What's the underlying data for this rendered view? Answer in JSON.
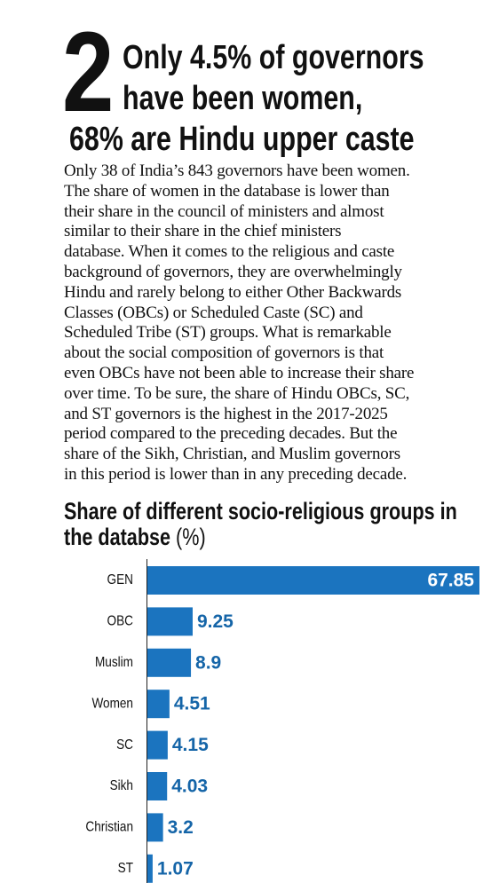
{
  "header": {
    "number": "2",
    "headline": [
      "Only 4.5% of governors",
      "have been women,",
      "68% are Hindu upper caste"
    ]
  },
  "body": [
    "Only 38 of India’s 843 governors have been women.",
    "The share of women in the database is lower than",
    "their share in the council of ministers and almost",
    "similar to their share in the chief ministers",
    "database. When it comes to the religious and caste",
    "background of governors, they are overwhelmingly",
    "Hindu and rarely belong to either Other Backwards",
    "Classes (OBCs) or Scheduled Caste (SC) and",
    "Scheduled Tribe (ST) groups. What is remarkable",
    "about the social composition of governors is that",
    "even OBCs have not been able to increase their share",
    "over time. To be sure, the share of Hindu OBCs, SC,",
    "and ST governors is the highest in the 2017-2025",
    "period compared to the preceding decades. But the",
    "share of the Sikh, Christian, and Muslim governors",
    "in this period is lower than in any preceding decade."
  ],
  "chart_data": {
    "type": "hbar",
    "title": "Share of different socio-religious groups in the databse",
    "unit": "(%)",
    "categories": [
      "GEN",
      "OBC",
      "Muslim",
      "Women",
      "SC",
      "Sikh",
      "Christian",
      "ST"
    ],
    "values": [
      67.85,
      9.25,
      8.9,
      4.51,
      4.15,
      4.03,
      3.2,
      1.07
    ],
    "color": "#1b74bf"
  }
}
